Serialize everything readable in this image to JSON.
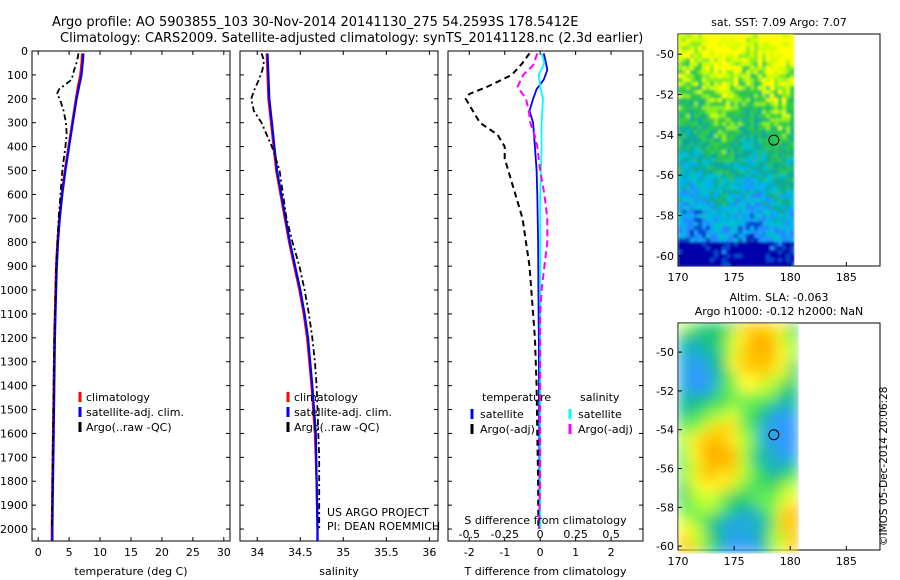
{
  "header": {
    "line1": "Argo profile: AO 5903855_103 30-Nov-2014 20141130_275 54.2593S 178.5412E",
    "line2": "Climatology: CARS2009. Satellite-adjusted climatology: synTS_20141128.nc (2.3d earlier)"
  },
  "colors": {
    "climatology": "#ff0000",
    "satellite": "#0000ff",
    "argo": "#000000",
    "s_satellite": "#00ffff",
    "s_argo": "#ff00ff"
  },
  "credit": "©IMOS 05-Dec-2014 20:06:28",
  "project": {
    "line1": "US ARGO PROJECT",
    "line2": "PI: DEAN ROEMMICH"
  },
  "depth_ticks": [
    "0",
    "100",
    "200",
    "300",
    "400",
    "500",
    "600",
    "700",
    "800",
    "900",
    "1000",
    "1100",
    "1200",
    "1300",
    "1400",
    "1500",
    "1600",
    "1700",
    "1800",
    "1900",
    "2000"
  ],
  "chart_data": [
    {
      "type": "line",
      "xlabel": "temperature (deg C)",
      "xlim": [
        -1,
        31
      ],
      "ylim": [
        2050,
        0
      ],
      "x_ticks": [
        "0",
        "5",
        "10",
        "15",
        "20",
        "25",
        "30"
      ],
      "legend": [
        "climatology",
        "satellite-adj. clim.",
        "Argo(..raw -QC)"
      ],
      "series": [
        {
          "name": "climatology",
          "depth": [
            10,
            50,
            100,
            150,
            200,
            300,
            400,
            500,
            600,
            700,
            800,
            900,
            1000,
            1200,
            1400,
            1600,
            1800,
            2000,
            2050
          ],
          "values": [
            7.1,
            7.0,
            6.8,
            6.4,
            6.1,
            5.5,
            4.9,
            4.3,
            3.8,
            3.4,
            3.1,
            2.9,
            2.8,
            2.6,
            2.5,
            2.4,
            2.3,
            2.2,
            2.2
          ]
        },
        {
          "name": "satellite-adj. clim.",
          "depth": [
            10,
            50,
            100,
            150,
            200,
            300,
            400,
            500,
            600,
            700,
            800,
            900,
            1000,
            1200,
            1400,
            1600,
            1800,
            2000,
            2050
          ],
          "values": [
            7.3,
            7.2,
            7.0,
            6.6,
            6.2,
            5.6,
            5.0,
            4.4,
            3.9,
            3.5,
            3.2,
            3.0,
            2.9,
            2.7,
            2.6,
            2.5,
            2.4,
            2.3,
            2.3
          ]
        },
        {
          "name": "Argo(..raw -QC)",
          "depth": [
            10,
            40,
            80,
            120,
            160,
            180,
            200,
            250,
            300,
            350,
            400,
            500,
            600,
            700,
            800,
            900,
            1000,
            1200,
            1400,
            1600,
            1800,
            2000
          ],
          "values": [
            6.5,
            6.3,
            5.8,
            5.4,
            3.4,
            3.0,
            3.5,
            4.1,
            4.5,
            4.6,
            4.4,
            3.9,
            3.6,
            3.3,
            3.1,
            2.9,
            2.8,
            2.6,
            2.5,
            2.4,
            2.3,
            2.2
          ]
        }
      ]
    },
    {
      "type": "line",
      "xlabel": "salinity",
      "xlim": [
        33.8,
        36.1
      ],
      "ylim": [
        2050,
        0
      ],
      "x_ticks": [
        "34",
        "34.5",
        "35",
        "35.5",
        "36"
      ],
      "legend": [
        "climatology",
        "satellite-adj. clim.",
        "Argo(..raw -QC)"
      ],
      "series": [
        {
          "name": "climatology",
          "depth": [
            10,
            100,
            200,
            300,
            400,
            500,
            600,
            700,
            800,
            900,
            1000,
            1100,
            1200,
            1400,
            1600,
            1800,
            2000,
            2050
          ],
          "values": [
            34.11,
            34.12,
            34.13,
            34.16,
            34.19,
            34.22,
            34.27,
            34.32,
            34.37,
            34.43,
            34.49,
            34.54,
            34.58,
            34.63,
            34.67,
            34.69,
            34.7,
            34.7
          ]
        },
        {
          "name": "satellite-adj. clim.",
          "depth": [
            10,
            100,
            200,
            300,
            400,
            500,
            600,
            700,
            800,
            900,
            1000,
            1100,
            1200,
            1400,
            1600,
            1800,
            2000,
            2050
          ],
          "values": [
            34.12,
            34.13,
            34.14,
            34.17,
            34.2,
            34.23,
            34.28,
            34.33,
            34.38,
            34.44,
            34.5,
            34.55,
            34.59,
            34.64,
            34.68,
            34.69,
            34.7,
            34.7
          ]
        },
        {
          "name": "Argo(..raw -QC)",
          "depth": [
            10,
            40,
            80,
            120,
            160,
            200,
            250,
            300,
            400,
            500,
            550,
            600,
            700,
            800,
            900,
            1000,
            1100,
            1200,
            1300,
            1400,
            1500,
            1600,
            1700,
            1800,
            1900,
            2000
          ],
          "values": [
            34.05,
            34.08,
            34.06,
            34.02,
            33.97,
            33.93,
            33.96,
            34.05,
            34.17,
            34.26,
            34.28,
            34.3,
            34.34,
            34.41,
            34.49,
            34.55,
            34.6,
            34.64,
            34.67,
            34.69,
            34.7,
            34.71,
            34.72,
            34.72,
            34.72,
            34.72
          ]
        }
      ]
    },
    {
      "type": "line",
      "xlabel": "T difference from climatology",
      "xlabel_top": "S difference from climatology",
      "xlim": [
        -2.6,
        2.9
      ],
      "ylim": [
        2050,
        0
      ],
      "x_ticks": [
        "-2",
        "-1",
        "0",
        "1",
        "2"
      ],
      "x_ticks_top": [
        "-0.5",
        "-0.25",
        "0",
        "0.25",
        "0.5"
      ],
      "legend_groups": [
        {
          "title": "temperature",
          "entries": [
            "satellite",
            "Argo(-adj)"
          ]
        },
        {
          "title": "salinity",
          "entries": [
            "satellite",
            "Argo(-adj)"
          ]
        }
      ],
      "series": [
        {
          "name": "temperature satellite",
          "depth": [
            10,
            40,
            80,
            120,
            160,
            200,
            250,
            300,
            400,
            500,
            600,
            800,
            1000,
            1200,
            1500,
            1800,
            2000
          ],
          "values": [
            0.1,
            0.15,
            0.2,
            0.1,
            -0.1,
            -0.2,
            -0.3,
            -0.2,
            -0.15,
            -0.1,
            -0.08,
            -0.06,
            -0.05,
            -0.04,
            -0.03,
            -0.02,
            -0.02
          ]
        },
        {
          "name": "temperature Argo(-adj)",
          "depth": [
            10,
            50,
            100,
            150,
            180,
            200,
            250,
            300,
            350,
            400,
            450,
            500,
            550,
            600,
            700,
            800,
            900,
            1000,
            1200,
            1400,
            1600,
            1800,
            2000
          ],
          "values": [
            -0.3,
            -0.5,
            -0.8,
            -1.5,
            -2.0,
            -2.1,
            -1.9,
            -1.7,
            -1.2,
            -1.0,
            -1.0,
            -0.9,
            -0.8,
            -0.7,
            -0.5,
            -0.4,
            -0.3,
            -0.25,
            -0.15,
            -0.1,
            -0.08,
            -0.06,
            -0.05
          ]
        },
        {
          "name": "salinity satellite",
          "depth": [
            10,
            50,
            100,
            150,
            200,
            300,
            400,
            600,
            800,
            1000,
            1400,
            1800,
            2000
          ],
          "values": [
            0.01,
            0.03,
            -0.01,
            0.0,
            0.02,
            0.01,
            0.01,
            0.0,
            0.0,
            0.0,
            0.0,
            0.0,
            0.0
          ]
        },
        {
          "name": "salinity Argo(-adj)",
          "depth": [
            10,
            60,
            100,
            150,
            200,
            250,
            300,
            350,
            400,
            500,
            600,
            700,
            800,
            900,
            1000,
            1100,
            1200,
            1400,
            1600,
            1800,
            2000
          ],
          "values": [
            -0.02,
            -0.05,
            -0.12,
            -0.16,
            -0.1,
            -0.08,
            -0.07,
            -0.04,
            -0.02,
            0.0,
            0.03,
            0.05,
            0.05,
            0.03,
            0.01,
            0.0,
            0.0,
            0.0,
            0.0,
            0.0,
            -0.01
          ]
        }
      ]
    },
    {
      "type": "heatmap",
      "title": "sat. SST: 7.09 Argo: 7.07",
      "xlim": [
        170,
        188
      ],
      "ylim": [
        -60.5,
        -49
      ],
      "x_ticks": [
        "170",
        "175",
        "180",
        "185"
      ],
      "y_ticks": [
        "-50",
        "-52",
        "-54",
        "-56",
        "-58",
        "-60"
      ],
      "marker": {
        "lon": 178.54,
        "lat": -54.26
      }
    },
    {
      "type": "heatmap",
      "title_line1": "Altim. SLA: -0.063",
      "title_line2": "Argo h1000: -0.12 h2000: NaN",
      "xlim": [
        170,
        188
      ],
      "ylim": [
        -60.2,
        -48.5
      ],
      "x_ticks": [
        "170",
        "175",
        "180",
        "185"
      ],
      "y_ticks": [
        "-50",
        "-52",
        "-54",
        "-56",
        "-58",
        "-60"
      ],
      "marker": {
        "lon": 178.54,
        "lat": -54.26
      }
    }
  ]
}
